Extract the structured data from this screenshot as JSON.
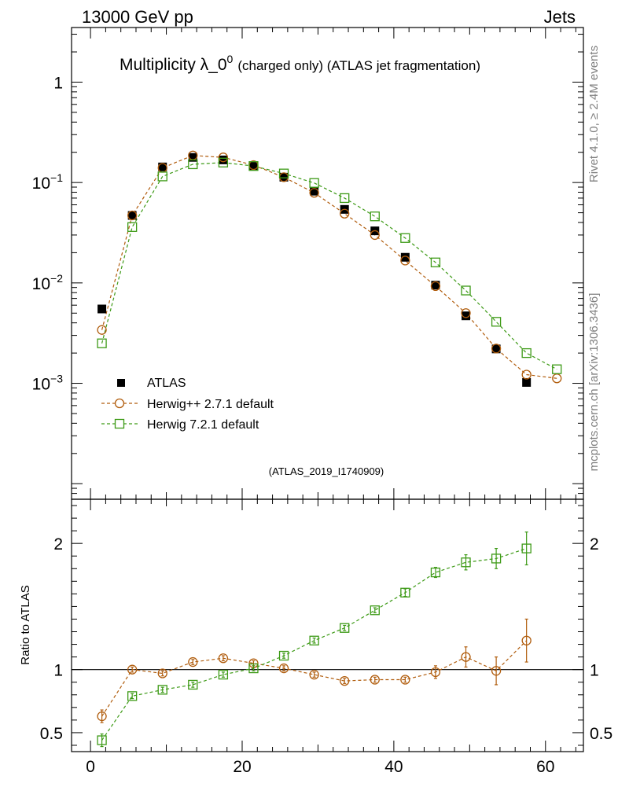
{
  "header": {
    "left_label": "13000 GeV pp",
    "right_label": "Jets"
  },
  "side_labels": {
    "rivet": "Rivet 4.1.0, ≥ 2.4M events",
    "mcplots": "mcplots.cern.ch [arXiv:1306.3436]"
  },
  "colors": {
    "data": "#000000",
    "herwigpp": "#b05c0c",
    "herwig7": "#3d9a16",
    "side_text": "#808080",
    "analysis_label": "#a0a0a0"
  },
  "chart_data": [
    {
      "type": "scatter",
      "panel": "main",
      "title_main": "Multiplicity λ_0",
      "title_sup": "0",
      "title_sub": "(charged only) (ATLAS jet fragmentation)",
      "analysis_label": "(ATLAS_2019_I1740909)",
      "yscale": "log",
      "xlim": [
        -2.5,
        65
      ],
      "ylim": [
        7e-05,
        3.5
      ],
      "yticks": [
        {
          "value": 1,
          "base": "1",
          "exp": ""
        },
        {
          "value": 0.1,
          "base": "10",
          "exp": "−1"
        },
        {
          "value": 0.01,
          "base": "10",
          "exp": "−2"
        },
        {
          "value": 0.001,
          "base": "10",
          "exp": "−3"
        }
      ],
      "legend": {
        "position": "lower-left",
        "entries": [
          "ATLAS",
          "Herwig++ 2.7.1 default",
          "Herwig 7.2.1 default"
        ]
      },
      "series": [
        {
          "name": "ATLAS",
          "marker": "filled-square",
          "x": [
            1.5,
            5.5,
            9.5,
            13.5,
            17.5,
            21.5,
            25.5,
            29.5,
            33.5,
            37.5,
            41.5,
            45.5,
            49.5,
            53.5,
            57.5
          ],
          "y": [
            0.0055,
            0.047,
            0.143,
            0.178,
            0.168,
            0.145,
            0.113,
            0.082,
            0.054,
            0.033,
            0.018,
            0.0095,
            0.0047,
            0.0022,
            0.00102
          ]
        },
        {
          "name": "Herwig++ 2.7.1 default",
          "marker": "open-circle",
          "x": [
            1.5,
            5.5,
            9.5,
            13.5,
            17.5,
            21.5,
            25.5,
            29.5,
            33.5,
            37.5,
            41.5,
            45.5,
            49.5,
            53.5,
            57.5,
            61.5
          ],
          "y": [
            0.0034,
            0.047,
            0.14,
            0.186,
            0.178,
            0.149,
            0.113,
            0.079,
            0.049,
            0.03,
            0.0167,
            0.0093,
            0.005,
            0.00222,
            0.00122,
            0.00112
          ]
        },
        {
          "name": "Herwig 7.2.1 default",
          "marker": "open-square",
          "x": [
            1.5,
            5.5,
            9.5,
            13.5,
            17.5,
            21.5,
            25.5,
            29.5,
            33.5,
            37.5,
            41.5,
            45.5,
            49.5,
            53.5,
            57.5,
            61.5
          ],
          "y": [
            0.0025,
            0.036,
            0.115,
            0.152,
            0.158,
            0.146,
            0.123,
            0.099,
            0.07,
            0.046,
            0.028,
            0.016,
            0.0084,
            0.0041,
            0.002,
            0.00138
          ]
        }
      ]
    },
    {
      "type": "scatter",
      "panel": "ratio",
      "ylabel": "Ratio to ATLAS",
      "xlim": [
        -2.5,
        65
      ],
      "ylim": [
        0.35,
        2.35
      ],
      "xticks": [
        0,
        20,
        40,
        60
      ],
      "yticks": [
        0.5,
        1,
        2
      ],
      "reference_line": 1,
      "series": [
        {
          "name": "Herwig++ 2.7.1 default",
          "marker": "open-circle",
          "x": [
            1.5,
            5.5,
            9.5,
            13.5,
            17.5,
            21.5,
            25.5,
            29.5,
            33.5,
            37.5,
            41.5,
            45.5,
            49.5,
            53.5,
            57.5
          ],
          "y": [
            0.63,
            1.0,
            0.97,
            1.06,
            1.09,
            1.05,
            1.01,
            0.96,
            0.91,
            0.92,
            0.92,
            0.98,
            1.1,
            0.99,
            1.23
          ],
          "err": [
            0.05,
            0.02,
            0.02,
            0.02,
            0.02,
            0.02,
            0.02,
            0.02,
            0.02,
            0.02,
            0.02,
            0.05,
            0.08,
            0.11,
            0.17
          ]
        },
        {
          "name": "Herwig 7.2.1 default",
          "marker": "open-square",
          "x": [
            1.5,
            5.5,
            9.5,
            13.5,
            17.5,
            21.5,
            25.5,
            29.5,
            33.5,
            37.5,
            41.5,
            45.5,
            49.5,
            53.5,
            57.5
          ],
          "y": [
            0.44,
            0.79,
            0.84,
            0.88,
            0.96,
            1.01,
            1.11,
            1.23,
            1.33,
            1.47,
            1.61,
            1.77,
            1.85,
            1.88,
            1.96
          ],
          "err": [
            0.05,
            0.02,
            0.02,
            0.02,
            0.02,
            0.02,
            0.02,
            0.02,
            0.02,
            0.02,
            0.03,
            0.04,
            0.06,
            0.08,
            0.13
          ]
        }
      ]
    }
  ]
}
